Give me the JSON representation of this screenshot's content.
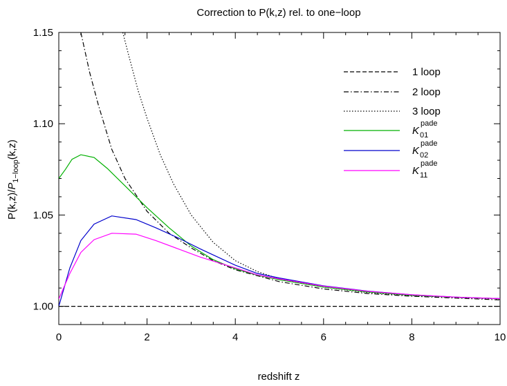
{
  "chart_data": {
    "type": "line",
    "title": "Correction to P(k,z) rel. to one−loop",
    "xlabel": "redshift z",
    "ylabel": {
      "numerator": "P(k,z)/",
      "denominator_italic": "P",
      "denominator_sub": "1−loop",
      "denominator_tail": "(k,z)"
    },
    "xlim": [
      0,
      10
    ],
    "ylim": [
      0.99,
      1.15
    ],
    "x_ticks": [
      0,
      2,
      4,
      6,
      8,
      10
    ],
    "x_tick_labels": [
      "0",
      "2",
      "4",
      "6",
      "8",
      "10"
    ],
    "y_ticks": [
      1.0,
      1.05,
      1.1,
      1.15
    ],
    "y_tick_labels": [
      "1.00",
      "1.05",
      "1.10",
      "1.15"
    ],
    "grid": false,
    "legend_position": "top-right",
    "series": [
      {
        "name": "1 loop",
        "style": "dashed",
        "color": "#000000",
        "x": [
          0,
          10
        ],
        "y": [
          1.0,
          1.0
        ]
      },
      {
        "name": "2 loop",
        "style": "dashdot",
        "color": "#000000",
        "x": [
          0.5,
          0.7,
          0.9,
          1.2,
          1.5,
          2.0,
          2.5,
          3.0,
          3.5,
          4.0,
          5.0,
          6.0,
          7.0,
          8.0,
          9.0,
          10.0
        ],
        "y": [
          1.15,
          1.128,
          1.11,
          1.086,
          1.07,
          1.052,
          1.04,
          1.032,
          1.025,
          1.02,
          1.0135,
          1.0095,
          1.007,
          1.0055,
          1.0045,
          1.0035
        ]
      },
      {
        "name": "3 loop",
        "style": "dotted",
        "color": "#000000",
        "x": [
          1.45,
          1.6,
          1.8,
          2.0,
          2.3,
          2.6,
          3.0,
          3.5,
          4.0,
          4.5,
          5.0,
          6.0,
          7.0,
          8.0,
          9.0,
          10.0
        ],
        "y": [
          1.15,
          1.136,
          1.118,
          1.103,
          1.083,
          1.067,
          1.05,
          1.035,
          1.025,
          1.019,
          1.015,
          1.0105,
          1.0075,
          1.0058,
          1.0048,
          1.004
        ]
      },
      {
        "name": "K01",
        "label_main": "K",
        "label_sub": "01",
        "label_sup": "pade",
        "style": "solid",
        "color": "#00b000",
        "x": [
          0,
          0.15,
          0.3,
          0.5,
          0.8,
          1.1,
          1.5,
          2.0,
          2.5,
          3.0,
          3.5,
          4.0,
          4.5,
          5.0,
          6.0,
          7.0,
          8.0,
          9.0,
          10.0
        ],
        "y": [
          1.07,
          1.075,
          1.0805,
          1.083,
          1.0815,
          1.0755,
          1.066,
          1.054,
          1.043,
          1.033,
          1.0255,
          1.0205,
          1.017,
          1.0145,
          1.0105,
          1.0078,
          1.006,
          1.005,
          1.0042
        ]
      },
      {
        "name": "K02",
        "label_main": "K",
        "label_sub": "02",
        "label_sup": "pade",
        "style": "solid",
        "color": "#0000cc",
        "x": [
          0,
          0.25,
          0.5,
          0.8,
          1.2,
          1.75,
          2.2,
          2.7,
          3.2,
          4.0,
          4.5,
          5.0,
          6.0,
          7.0,
          8.0,
          9.0,
          10.0
        ],
        "y": [
          1.0,
          1.021,
          1.036,
          1.045,
          1.0495,
          1.0475,
          1.043,
          1.0375,
          1.0315,
          1.0225,
          1.018,
          1.0155,
          1.0112,
          1.0083,
          1.0063,
          1.005,
          1.0042
        ]
      },
      {
        "name": "K11",
        "label_main": "K",
        "label_sub": "11",
        "label_sup": "pade",
        "style": "solid",
        "color": "#ff00ff",
        "x": [
          0,
          0.25,
          0.5,
          0.8,
          1.2,
          1.75,
          2.2,
          2.7,
          3.2,
          4.0,
          4.5,
          5.0,
          6.0,
          7.0,
          8.0,
          9.0,
          10.0
        ],
        "y": [
          1.004,
          1.018,
          1.0295,
          1.0365,
          1.04,
          1.0395,
          1.036,
          1.0315,
          1.027,
          1.021,
          1.0172,
          1.015,
          1.011,
          1.0082,
          1.0063,
          1.005,
          1.0042
        ]
      }
    ]
  }
}
